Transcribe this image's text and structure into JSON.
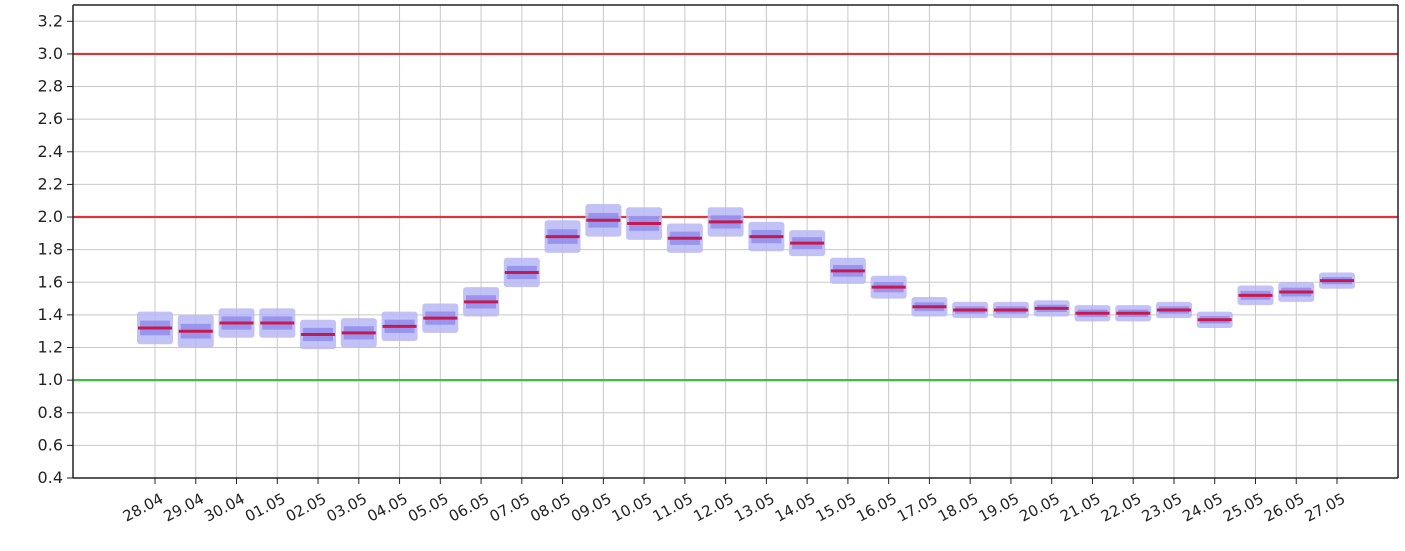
{
  "chart_data": {
    "type": "box",
    "title": "",
    "xlabel": "",
    "ylabel": "",
    "ylim": [
      0.4,
      3.3
    ],
    "yticks": [
      0.4,
      0.6,
      0.8,
      1.0,
      1.2,
      1.4,
      1.6,
      1.8,
      2.0,
      2.2,
      2.4,
      2.6,
      2.8,
      3.0,
      3.2
    ],
    "ytick_labels": [
      "0.4",
      "0.6",
      "0.8",
      "1.0",
      "1.2",
      "1.4",
      "1.6",
      "1.8",
      "2.0",
      "2.2",
      "2.4",
      "2.6",
      "2.8",
      "3.0",
      "3.2"
    ],
    "grid": true,
    "categories": [
      "28.04",
      "29.04",
      "30.04",
      "01.05",
      "02.05",
      "03.05",
      "04.05",
      "05.05",
      "06.05",
      "07.05",
      "08.05",
      "09.05",
      "10.05",
      "11.05",
      "12.05",
      "13.05",
      "14.05",
      "15.05",
      "16.05",
      "17.05",
      "18.05",
      "19.05",
      "20.05",
      "21.05",
      "22.05",
      "23.05",
      "24.05",
      "25.05",
      "26.05",
      "27.05"
    ],
    "tick_categories": [
      "28.04",
      "29.04",
      "30.04",
      "01.05",
      "02.05",
      "03.05",
      "04.05",
      "05.05",
      "06.05",
      "07.05",
      "08.05",
      "09.05",
      "10.05",
      "11.05",
      "12.05",
      "13.05",
      "14.05",
      "15.05",
      "16.05",
      "17.05",
      "18.05",
      "19.05",
      "20.05",
      "21.05",
      "22.05",
      "23.05",
      "24.05",
      "25.05",
      "26.05",
      "27.05"
    ],
    "median": [
      1.32,
      1.3,
      1.35,
      1.35,
      1.28,
      1.29,
      1.33,
      1.38,
      1.48,
      1.66,
      1.88,
      1.98,
      1.96,
      1.87,
      1.97,
      1.88,
      1.84,
      1.67,
      1.57,
      1.45,
      1.43,
      1.43,
      1.44,
      1.41,
      1.41,
      1.43,
      1.37,
      1.52,
      1.54,
      1.61
    ],
    "box_spread": [
      0.1,
      0.1,
      0.09,
      0.09,
      0.09,
      0.09,
      0.09,
      0.09,
      0.09,
      0.09,
      0.1,
      0.1,
      0.1,
      0.09,
      0.09,
      0.09,
      0.08,
      0.08,
      0.07,
      0.06,
      0.05,
      0.05,
      0.05,
      0.05,
      0.05,
      0.05,
      0.05,
      0.06,
      0.06,
      0.05
    ],
    "reference_lines": [
      {
        "value": 3.0,
        "color": "#d9363a"
      },
      {
        "value": 2.0,
        "color": "#d9363a"
      },
      {
        "value": 1.0,
        "color": "#3fbf3f"
      }
    ],
    "colors": {
      "box_outer": "#b9b7f5",
      "box_inner": "#8d89ec",
      "median": "#c8194e",
      "grid": "#c8c8c8",
      "axis": "#222222"
    }
  }
}
